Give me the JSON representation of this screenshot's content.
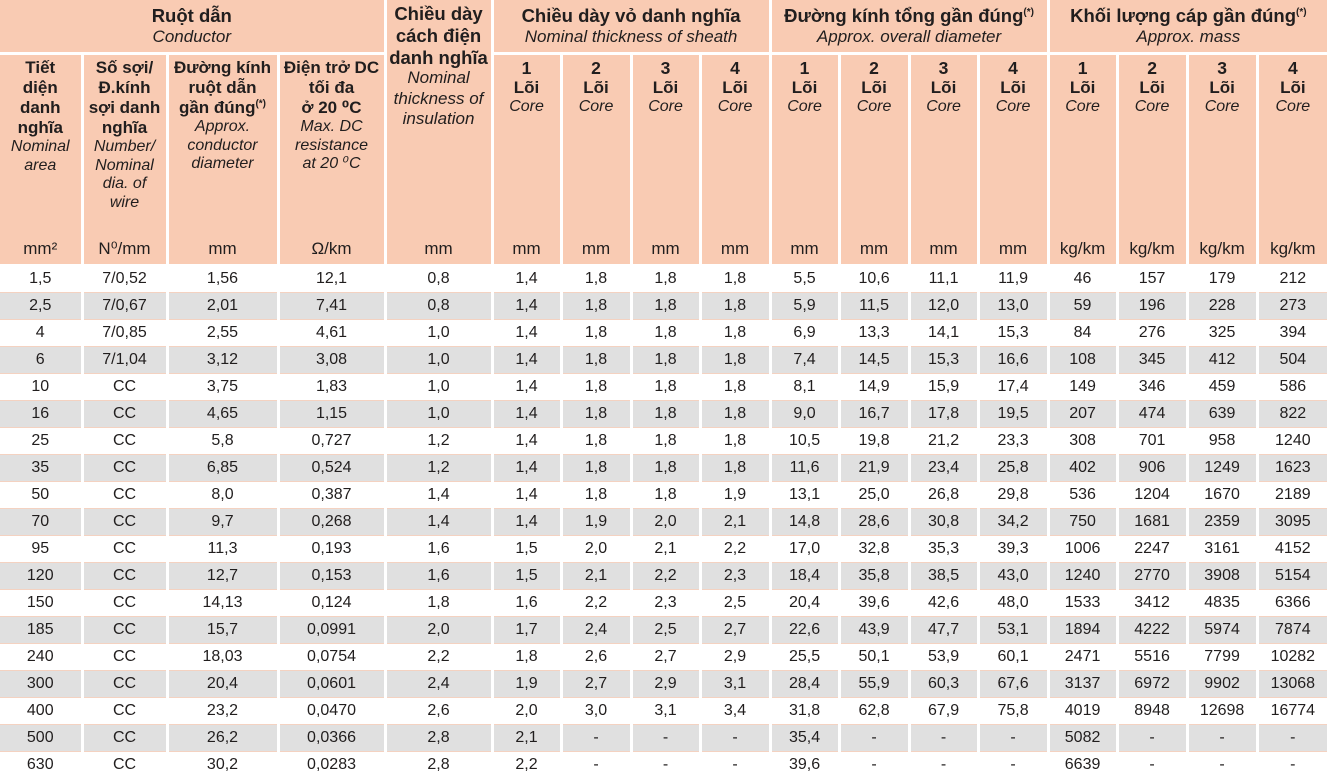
{
  "colors": {
    "header_bg": "#f9cbb3",
    "row_alt_bg": "#e0e0e0",
    "row_bg": "#ffffff",
    "cell_separator": "#ffffff",
    "row_line": "#f4d2c1",
    "text": "#211e1e"
  },
  "header": {
    "groups": {
      "conductor": {
        "vi": "Ruột dẫn",
        "en": "Conductor"
      },
      "insulation": {
        "vi": "Chiều dày\ncách điện\ndanh\nnghĩa",
        "en": "Nominal\nthickness\nof\ninsulation",
        "unit": "mm"
      },
      "sheath": {
        "vi": "Chiều dày vỏ danh nghĩa",
        "en": "Nominal thickness of sheath"
      },
      "diameter": {
        "vi": "Đường kính tổng gần đúng",
        "sup": "(*)",
        "en": "Approx. overall diameter"
      },
      "mass": {
        "vi": "Khối lượng cáp gần đúng",
        "sup": "(*)",
        "en": "Approx. mass"
      }
    },
    "conductor_columns": [
      {
        "vi": "Tiết\ndiện\ndanh\nnghĩa",
        "en": "Nominal\narea",
        "unit": "mm²"
      },
      {
        "vi": "Số sợi/\nĐ.kính\nsợi danh\nnghĩa",
        "en": "Number/\nNominal\ndia. of\nwire",
        "unit": "N⁰/mm"
      },
      {
        "vi": "Đường kính\nruột dẫn\ngần đúng",
        "sup": "(*)",
        "en": "Approx.\nconductor\ndiameter",
        "unit": "mm"
      },
      {
        "vi": "Điện trở DC\ntối đa\nở 20 ⁰C",
        "en": "Max. DC\nresistance\nat 20 ⁰C",
        "unit": "Ω/km"
      }
    ],
    "core_subheader": {
      "nums": [
        "1",
        "2",
        "3",
        "4"
      ],
      "vi": "Lõi",
      "en": "Core"
    },
    "units": {
      "sheath": "mm",
      "diameter": "mm",
      "mass": "kg/km"
    }
  },
  "table": {
    "rows": [
      [
        "1,5",
        "7/0,52",
        "1,56",
        "12,1",
        "0,8",
        "1,4",
        "1,8",
        "1,8",
        "1,8",
        "5,5",
        "10,6",
        "11,1",
        "11,9",
        "46",
        "157",
        "179",
        "212"
      ],
      [
        "2,5",
        "7/0,67",
        "2,01",
        "7,41",
        "0,8",
        "1,4",
        "1,8",
        "1,8",
        "1,8",
        "5,9",
        "11,5",
        "12,0",
        "13,0",
        "59",
        "196",
        "228",
        "273"
      ],
      [
        "4",
        "7/0,85",
        "2,55",
        "4,61",
        "1,0",
        "1,4",
        "1,8",
        "1,8",
        "1,8",
        "6,9",
        "13,3",
        "14,1",
        "15,3",
        "84",
        "276",
        "325",
        "394"
      ],
      [
        "6",
        "7/1,04",
        "3,12",
        "3,08",
        "1,0",
        "1,4",
        "1,8",
        "1,8",
        "1,8",
        "7,4",
        "14,5",
        "15,3",
        "16,6",
        "108",
        "345",
        "412",
        "504"
      ],
      [
        "10",
        "CC",
        "3,75",
        "1,83",
        "1,0",
        "1,4",
        "1,8",
        "1,8",
        "1,8",
        "8,1",
        "14,9",
        "15,9",
        "17,4",
        "149",
        "346",
        "459",
        "586"
      ],
      [
        "16",
        "CC",
        "4,65",
        "1,15",
        "1,0",
        "1,4",
        "1,8",
        "1,8",
        "1,8",
        "9,0",
        "16,7",
        "17,8",
        "19,5",
        "207",
        "474",
        "639",
        "822"
      ],
      [
        "25",
        "CC",
        "5,8",
        "0,727",
        "1,2",
        "1,4",
        "1,8",
        "1,8",
        "1,8",
        "10,5",
        "19,8",
        "21,2",
        "23,3",
        "308",
        "701",
        "958",
        "1240"
      ],
      [
        "35",
        "CC",
        "6,85",
        "0,524",
        "1,2",
        "1,4",
        "1,8",
        "1,8",
        "1,8",
        "11,6",
        "21,9",
        "23,4",
        "25,8",
        "402",
        "906",
        "1249",
        "1623"
      ],
      [
        "50",
        "CC",
        "8,0",
        "0,387",
        "1,4",
        "1,4",
        "1,8",
        "1,8",
        "1,9",
        "13,1",
        "25,0",
        "26,8",
        "29,8",
        "536",
        "1204",
        "1670",
        "2189"
      ],
      [
        "70",
        "CC",
        "9,7",
        "0,268",
        "1,4",
        "1,4",
        "1,9",
        "2,0",
        "2,1",
        "14,8",
        "28,6",
        "30,8",
        "34,2",
        "750",
        "1681",
        "2359",
        "3095"
      ],
      [
        "95",
        "CC",
        "11,3",
        "0,193",
        "1,6",
        "1,5",
        "2,0",
        "2,1",
        "2,2",
        "17,0",
        "32,8",
        "35,3",
        "39,3",
        "1006",
        "2247",
        "3161",
        "4152"
      ],
      [
        "120",
        "CC",
        "12,7",
        "0,153",
        "1,6",
        "1,5",
        "2,1",
        "2,2",
        "2,3",
        "18,4",
        "35,8",
        "38,5",
        "43,0",
        "1240",
        "2770",
        "3908",
        "5154"
      ],
      [
        "150",
        "CC",
        "14,13",
        "0,124",
        "1,8",
        "1,6",
        "2,2",
        "2,3",
        "2,5",
        "20,4",
        "39,6",
        "42,6",
        "48,0",
        "1533",
        "3412",
        "4835",
        "6366"
      ],
      [
        "185",
        "CC",
        "15,7",
        "0,0991",
        "2,0",
        "1,7",
        "2,4",
        "2,5",
        "2,7",
        "22,6",
        "43,9",
        "47,7",
        "53,1",
        "1894",
        "4222",
        "5974",
        "7874"
      ],
      [
        "240",
        "CC",
        "18,03",
        "0,0754",
        "2,2",
        "1,8",
        "2,6",
        "2,7",
        "2,9",
        "25,5",
        "50,1",
        "53,9",
        "60,1",
        "2471",
        "5516",
        "7799",
        "10282"
      ],
      [
        "300",
        "CC",
        "20,4",
        "0,0601",
        "2,4",
        "1,9",
        "2,7",
        "2,9",
        "3,1",
        "28,4",
        "55,9",
        "60,3",
        "67,6",
        "3137",
        "6972",
        "9902",
        "13068"
      ],
      [
        "400",
        "CC",
        "23,2",
        "0,0470",
        "2,6",
        "2,0",
        "3,0",
        "3,1",
        "3,4",
        "31,8",
        "62,8",
        "67,9",
        "75,8",
        "4019",
        "8948",
        "12698",
        "16774"
      ],
      [
        "500",
        "CC",
        "26,2",
        "0,0366",
        "2,8",
        "2,1",
        "-",
        "-",
        "-",
        "35,4",
        "-",
        "-",
        "-",
        "5082",
        "-",
        "-",
        "-"
      ],
      [
        "630",
        "CC",
        "30,2",
        "0,0283",
        "2,8",
        "2,2",
        "-",
        "-",
        "-",
        "39,6",
        "-",
        "-",
        "-",
        "6639",
        "-",
        "-",
        "-"
      ]
    ]
  }
}
